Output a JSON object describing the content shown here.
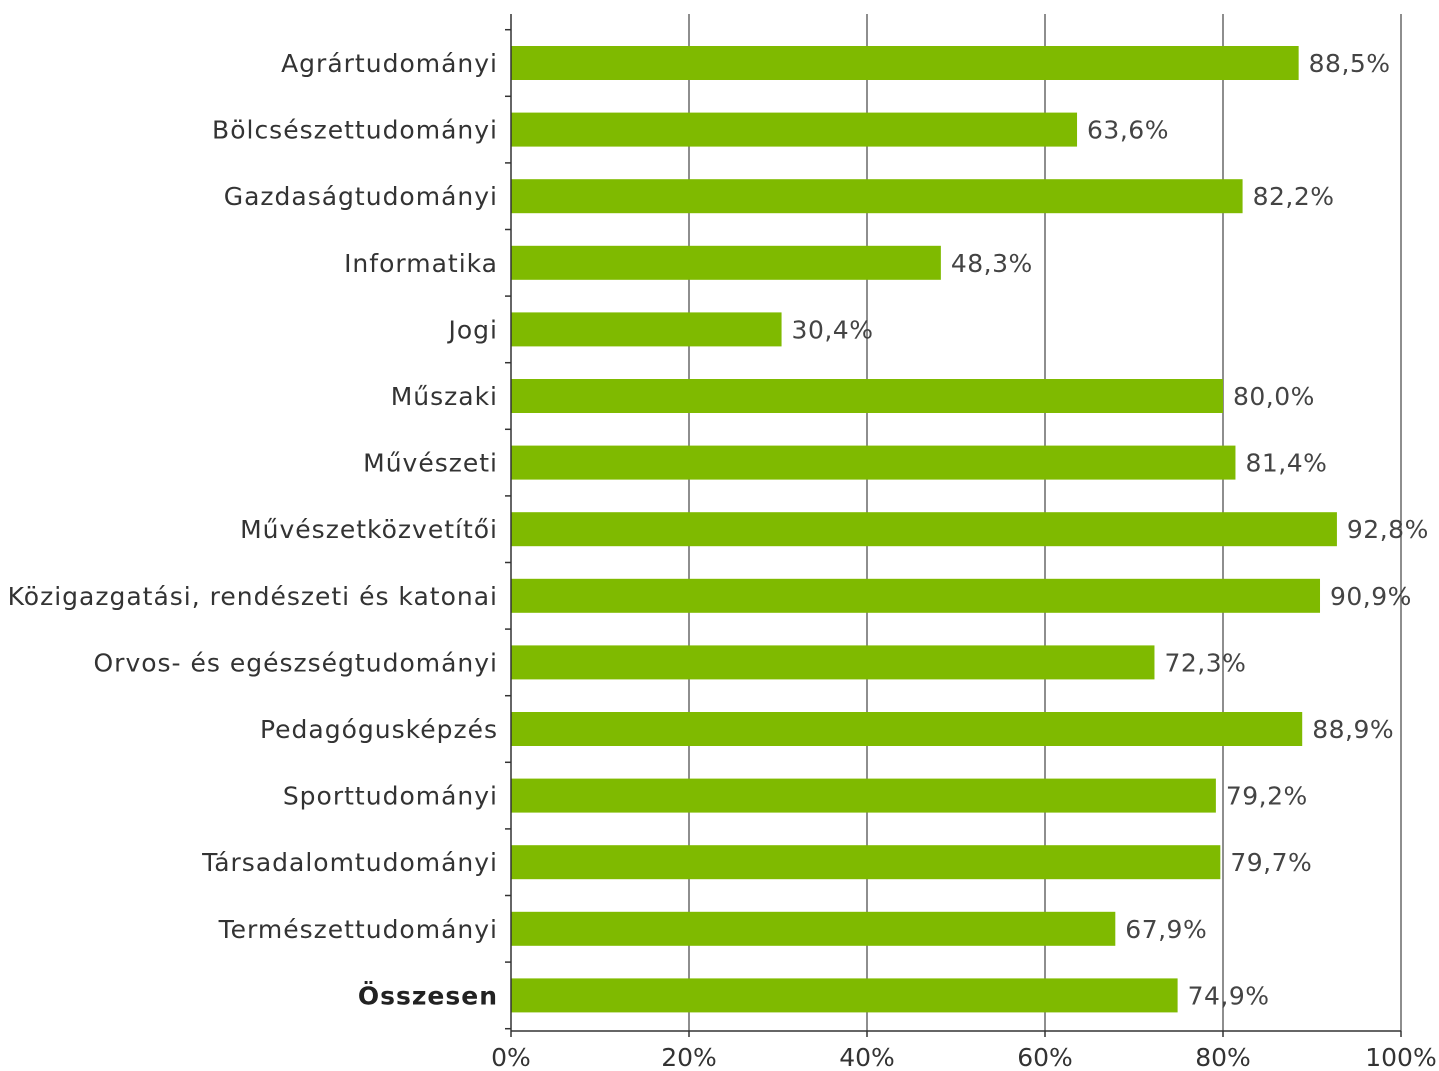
{
  "chart_data": {
    "type": "bar",
    "orientation": "horizontal",
    "categories": [
      "Agrártudományi",
      "Bölcsészettudományi",
      "Gazdaságtudományi",
      "Informatika",
      "Jogi",
      "Műszaki",
      "Művészeti",
      "Művészetközvetítői",
      "Közigazgatási, rendészeti és katonai",
      "Orvos- és egészségtudományi",
      "Pedagógusképzés",
      "Sporttudományi",
      "Társadalomtudományi",
      "Természettudományi",
      "Összesen"
    ],
    "values": [
      88.5,
      63.6,
      82.2,
      48.3,
      30.4,
      80.0,
      81.4,
      92.8,
      90.9,
      72.3,
      88.9,
      79.2,
      79.7,
      67.9,
      74.9
    ],
    "value_labels": [
      "88,5%",
      "63,6%",
      "82,2%",
      "48,3%",
      "30,4%",
      "80,0%",
      "81,4%",
      "92,8%",
      "90,9%",
      "72,3%",
      "88,9%",
      "79,2%",
      "79,7%",
      "67,9%",
      "74,9%"
    ],
    "emphasized_category": "Összesen",
    "xlim": [
      0,
      100
    ],
    "x_ticks": [
      0,
      20,
      40,
      60,
      80,
      100
    ],
    "x_tick_labels": [
      "0%",
      "20%",
      "40%",
      "60%",
      "80%",
      "100%"
    ],
    "grid": "vertical",
    "bar_color": "#7fba00",
    "title": "",
    "xlabel": "",
    "ylabel": ""
  }
}
